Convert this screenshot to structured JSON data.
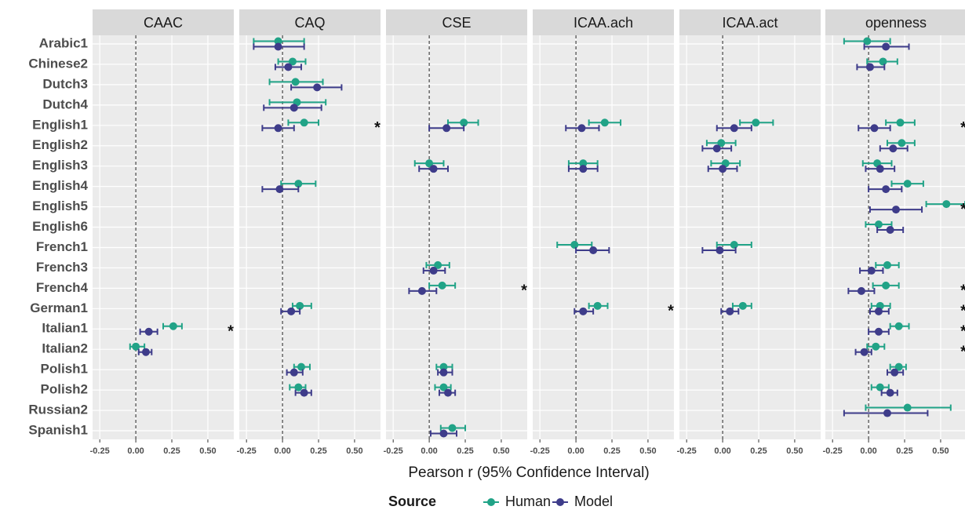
{
  "chart_data": {
    "type": "errorbar",
    "x_label": "Pearson r (95% Confidence Interval)",
    "legend_title": "Source",
    "legend_position": "bottom",
    "series": [
      {
        "name": "Human",
        "color": "#21a387"
      },
      {
        "name": "Model",
        "color": "#3e3c8a"
      }
    ],
    "categories": [
      "Arabic1",
      "Chinese2",
      "Dutch3",
      "Dutch4",
      "English1",
      "English2",
      "English3",
      "English4",
      "English5",
      "English6",
      "French1",
      "French3",
      "French4",
      "German1",
      "Italian1",
      "Italian2",
      "Polish1",
      "Polish2",
      "Russian2",
      "Spanish1"
    ],
    "xlim": [
      -0.3,
      0.68
    ],
    "xticks": [
      -0.25,
      {
        "value": 0,
        "label": "0.00"
      },
      0.25,
      {
        "value": 0.5,
        "label": "0.50"
      }
    ],
    "ref_line": 0,
    "grid": true,
    "panels": [
      {
        "title": "CAAC",
        "series": [
          {
            "values": [
              null,
              null,
              null,
              null,
              null,
              null,
              null,
              null,
              null,
              null,
              null,
              null,
              null,
              null,
              0.26,
              0.0,
              null,
              null,
              null,
              null
            ],
            "lower": [
              null,
              null,
              null,
              null,
              null,
              null,
              null,
              null,
              null,
              null,
              null,
              null,
              null,
              null,
              0.19,
              -0.04,
              null,
              null,
              null,
              null
            ],
            "upper": [
              null,
              null,
              null,
              null,
              null,
              null,
              null,
              null,
              null,
              null,
              null,
              null,
              null,
              null,
              0.32,
              0.06,
              null,
              null,
              null,
              null
            ]
          },
          {
            "values": [
              null,
              null,
              null,
              null,
              null,
              null,
              null,
              null,
              null,
              null,
              null,
              null,
              null,
              null,
              0.09,
              0.07,
              null,
              null,
              null,
              null
            ],
            "lower": [
              null,
              null,
              null,
              null,
              null,
              null,
              null,
              null,
              null,
              null,
              null,
              null,
              null,
              null,
              0.03,
              0.02,
              null,
              null,
              null,
              null
            ],
            "upper": [
              null,
              null,
              null,
              null,
              null,
              null,
              null,
              null,
              null,
              null,
              null,
              null,
              null,
              null,
              0.15,
              0.11,
              null,
              null,
              null,
              null
            ]
          }
        ],
        "stars": [
          null,
          null,
          null,
          null,
          null,
          null,
          null,
          null,
          null,
          null,
          null,
          null,
          null,
          null,
          "*",
          null,
          null,
          null,
          null,
          null
        ]
      },
      {
        "title": "CAQ",
        "series": [
          {
            "values": [
              -0.03,
              0.07,
              0.09,
              0.1,
              0.15,
              null,
              null,
              0.11,
              null,
              null,
              null,
              null,
              null,
              0.12,
              null,
              null,
              0.13,
              0.11,
              null,
              null
            ],
            "lower": [
              -0.2,
              -0.03,
              -0.09,
              -0.09,
              0.04,
              null,
              null,
              -0.01,
              null,
              null,
              null,
              null,
              null,
              0.07,
              null,
              null,
              0.08,
              0.05,
              null,
              null
            ],
            "upper": [
              0.15,
              0.16,
              0.28,
              0.3,
              0.25,
              null,
              null,
              0.23,
              null,
              null,
              null,
              null,
              null,
              0.2,
              null,
              null,
              0.19,
              0.16,
              null,
              null
            ]
          },
          {
            "values": [
              -0.03,
              0.04,
              0.24,
              0.08,
              -0.03,
              null,
              null,
              -0.02,
              null,
              null,
              null,
              null,
              null,
              0.06,
              null,
              null,
              0.08,
              0.15,
              null,
              null
            ],
            "lower": [
              -0.2,
              -0.05,
              0.06,
              -0.13,
              -0.14,
              null,
              null,
              -0.14,
              null,
              null,
              null,
              null,
              null,
              -0.01,
              null,
              null,
              0.03,
              0.09,
              null,
              null
            ],
            "upper": [
              0.15,
              0.13,
              0.41,
              0.27,
              0.08,
              null,
              null,
              0.11,
              null,
              null,
              null,
              null,
              null,
              0.12,
              null,
              null,
              0.14,
              0.2,
              null,
              null
            ]
          }
        ],
        "stars": [
          null,
          null,
          null,
          null,
          "*",
          null,
          null,
          null,
          null,
          null,
          null,
          null,
          null,
          null,
          null,
          null,
          null,
          null,
          null,
          null
        ]
      },
      {
        "title": "CSE",
        "series": [
          {
            "values": [
              null,
              null,
              null,
              null,
              0.24,
              null,
              0.0,
              null,
              null,
              null,
              null,
              0.06,
              0.09,
              null,
              null,
              null,
              0.1,
              0.1,
              null,
              0.16
            ],
            "lower": [
              null,
              null,
              null,
              null,
              0.13,
              null,
              -0.1,
              null,
              null,
              null,
              null,
              -0.02,
              0.0,
              null,
              null,
              null,
              0.05,
              0.04,
              null,
              0.08
            ],
            "upper": [
              null,
              null,
              null,
              null,
              0.34,
              null,
              0.1,
              null,
              null,
              null,
              null,
              0.14,
              0.18,
              null,
              null,
              null,
              0.16,
              0.15,
              null,
              0.25
            ]
          },
          {
            "values": [
              null,
              null,
              null,
              null,
              0.12,
              null,
              0.03,
              null,
              null,
              null,
              null,
              0.03,
              -0.05,
              null,
              null,
              null,
              0.1,
              0.13,
              null,
              0.1
            ],
            "lower": [
              null,
              null,
              null,
              null,
              0.0,
              null,
              -0.07,
              null,
              null,
              null,
              null,
              -0.04,
              -0.14,
              null,
              null,
              null,
              0.06,
              0.07,
              null,
              0.01
            ],
            "upper": [
              null,
              null,
              null,
              null,
              0.24,
              null,
              0.13,
              null,
              null,
              null,
              null,
              0.11,
              0.05,
              null,
              null,
              null,
              0.16,
              0.18,
              null,
              0.19
            ]
          }
        ],
        "stars": [
          null,
          null,
          null,
          null,
          null,
          null,
          null,
          null,
          null,
          null,
          null,
          null,
          "*",
          null,
          null,
          null,
          null,
          null,
          null,
          null
        ]
      },
      {
        "title": "ICAA.ach",
        "series": [
          {
            "values": [
              null,
              null,
              null,
              null,
              0.2,
              null,
              0.05,
              null,
              null,
              null,
              -0.01,
              null,
              null,
              0.15,
              null,
              null,
              null,
              null,
              null,
              null
            ],
            "lower": [
              null,
              null,
              null,
              null,
              0.09,
              null,
              -0.05,
              null,
              null,
              null,
              -0.13,
              null,
              null,
              0.09,
              null,
              null,
              null,
              null,
              null,
              null
            ],
            "upper": [
              null,
              null,
              null,
              null,
              0.31,
              null,
              0.15,
              null,
              null,
              null,
              0.11,
              null,
              null,
              0.22,
              null,
              null,
              null,
              null,
              null,
              null
            ]
          },
          {
            "values": [
              null,
              null,
              null,
              null,
              0.04,
              null,
              0.05,
              null,
              null,
              null,
              0.12,
              null,
              null,
              0.05,
              null,
              null,
              null,
              null,
              null,
              null
            ],
            "lower": [
              null,
              null,
              null,
              null,
              -0.07,
              null,
              -0.05,
              null,
              null,
              null,
              0.0,
              null,
              null,
              -0.01,
              null,
              null,
              null,
              null,
              null,
              null
            ],
            "upper": [
              null,
              null,
              null,
              null,
              0.16,
              null,
              0.15,
              null,
              null,
              null,
              0.23,
              null,
              null,
              0.12,
              null,
              null,
              null,
              null,
              null,
              null
            ]
          }
        ],
        "stars": [
          null,
          null,
          null,
          null,
          null,
          null,
          null,
          null,
          null,
          null,
          null,
          null,
          null,
          "*",
          null,
          null,
          null,
          null,
          null,
          null
        ]
      },
      {
        "title": "ICAA.act",
        "series": [
          {
            "values": [
              null,
              null,
              null,
              null,
              0.23,
              -0.01,
              0.02,
              null,
              null,
              null,
              0.08,
              null,
              null,
              0.14,
              null,
              null,
              null,
              null,
              null,
              null
            ],
            "lower": [
              null,
              null,
              null,
              null,
              0.12,
              -0.11,
              -0.08,
              null,
              null,
              null,
              -0.04,
              null,
              null,
              0.07,
              null,
              null,
              null,
              null,
              null,
              null
            ],
            "upper": [
              null,
              null,
              null,
              null,
              0.35,
              0.09,
              0.12,
              null,
              null,
              null,
              0.2,
              null,
              null,
              0.2,
              null,
              null,
              null,
              null,
              null,
              null
            ]
          },
          {
            "values": [
              null,
              null,
              null,
              null,
              0.08,
              -0.04,
              0.0,
              null,
              null,
              null,
              -0.02,
              null,
              null,
              0.05,
              null,
              null,
              null,
              null,
              null,
              null
            ],
            "lower": [
              null,
              null,
              null,
              null,
              -0.04,
              -0.14,
              -0.1,
              null,
              null,
              null,
              -0.14,
              null,
              null,
              -0.01,
              null,
              null,
              null,
              null,
              null,
              null
            ],
            "upper": [
              null,
              null,
              null,
              null,
              0.2,
              0.06,
              0.1,
              null,
              null,
              null,
              0.09,
              null,
              null,
              0.11,
              null,
              null,
              null,
              null,
              null,
              null
            ]
          }
        ],
        "stars": [
          null,
          null,
          null,
          null,
          null,
          null,
          null,
          null,
          null,
          null,
          null,
          null,
          null,
          null,
          null,
          null,
          null,
          null,
          null,
          null
        ]
      },
      {
        "title": "openness",
        "series": [
          {
            "values": [
              -0.01,
              0.1,
              null,
              null,
              0.22,
              0.23,
              0.06,
              0.27,
              0.54,
              0.07,
              null,
              0.13,
              0.12,
              0.08,
              0.21,
              0.05,
              0.21,
              0.08,
              0.27,
              null
            ],
            "lower": [
              -0.17,
              -0.01,
              null,
              null,
              0.12,
              0.13,
              -0.04,
              0.16,
              0.4,
              -0.02,
              null,
              0.05,
              0.03,
              0.02,
              0.15,
              -0.01,
              0.15,
              0.02,
              -0.02,
              null
            ],
            "upper": [
              0.15,
              0.2,
              null,
              null,
              0.32,
              0.32,
              0.16,
              0.38,
              0.67,
              0.16,
              null,
              0.21,
              0.21,
              0.15,
              0.28,
              0.11,
              0.26,
              0.14,
              0.57,
              null
            ]
          },
          {
            "values": [
              0.12,
              0.01,
              null,
              null,
              0.04,
              0.17,
              0.08,
              0.12,
              0.19,
              0.15,
              null,
              0.02,
              -0.05,
              0.07,
              0.07,
              -0.03,
              0.18,
              0.15,
              0.13,
              null
            ],
            "lower": [
              -0.03,
              -0.08,
              null,
              null,
              -0.07,
              0.08,
              -0.02,
              0.0,
              0.01,
              0.06,
              null,
              -0.06,
              -0.14,
              0.01,
              0.0,
              -0.09,
              0.13,
              0.09,
              -0.17,
              null
            ],
            "upper": [
              0.28,
              0.11,
              null,
              null,
              0.15,
              0.27,
              0.18,
              0.23,
              0.37,
              0.24,
              null,
              0.1,
              0.04,
              0.14,
              0.14,
              0.02,
              0.24,
              0.2,
              0.41,
              null
            ]
          }
        ],
        "stars": [
          null,
          null,
          null,
          null,
          "*",
          null,
          null,
          null,
          "*",
          null,
          null,
          null,
          "*",
          "*",
          "*",
          "*",
          null,
          null,
          null,
          null
        ]
      }
    ]
  }
}
